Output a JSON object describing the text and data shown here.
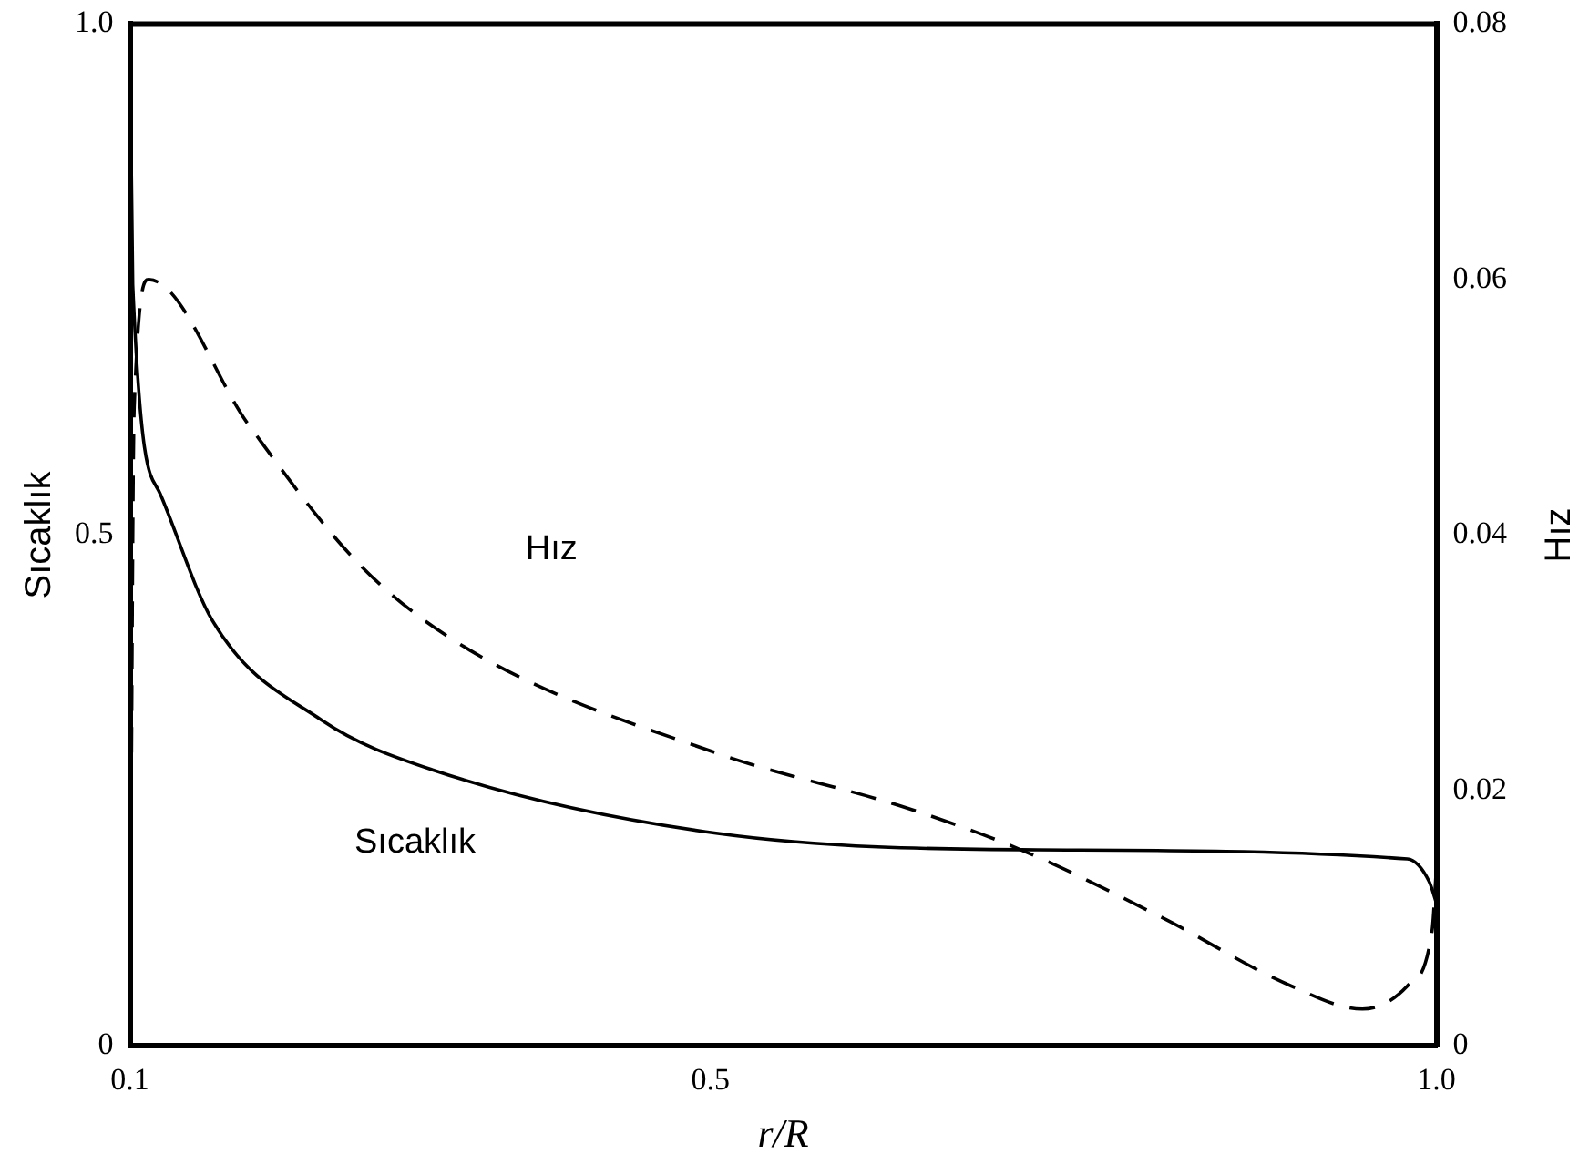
{
  "chart_data": {
    "type": "line",
    "xlabel": "r/R",
    "ylabel": "Sıcaklık",
    "y2label": "Hız",
    "xlim": [
      0.1,
      1.0
    ],
    "xticks": [
      {
        "value": 0.1,
        "label": "0.1"
      },
      {
        "value": 0.5,
        "label": "0.5"
      },
      {
        "value": 1.0,
        "label": "1.0"
      }
    ],
    "ylim": [
      0,
      1.0
    ],
    "yticks": [
      0,
      {
        "value": 0.5,
        "label": "0.5"
      },
      {
        "value": 1.0,
        "label": "1.0"
      }
    ],
    "y2lim": [
      0,
      0.08
    ],
    "y2ticks": [
      0,
      0.02,
      0.04,
      0.06,
      0.08
    ],
    "grid": false,
    "legend": false,
    "marker": "none",
    "series": [
      {
        "name": "Sıcaklık",
        "color": "#000000",
        "line_style": "solid",
        "x": [
          0.1,
          0.102,
          0.121,
          0.157,
          0.232,
          0.309,
          0.505,
          0.725,
          0.98,
          0.995,
          1.0
        ],
        "values": [
          1.0,
          0.745,
          0.54,
          0.416,
          0.319,
          0.27,
          0.208,
          0.192,
          0.183,
          0.161,
          0.14
        ]
      },
      {
        "name": "Hız",
        "color": "#000000",
        "line_style": "dashed",
        "axis": "y2",
        "x": [
          0.1,
          0.103,
          0.113,
          0.182,
          0.259,
          0.334,
          0.505,
          0.636,
          0.715,
          0.812,
          0.9,
          0.949,
          0.98,
          0.997,
          1.0
        ],
        "values": [
          0,
          0.05,
          0.06,
          0.0486,
          0.0376,
          0.031,
          0.0229,
          0.0186,
          0.0153,
          0.01,
          0.0047,
          0.0029,
          0.0047,
          0.009,
          0.014
        ]
      }
    ]
  }
}
